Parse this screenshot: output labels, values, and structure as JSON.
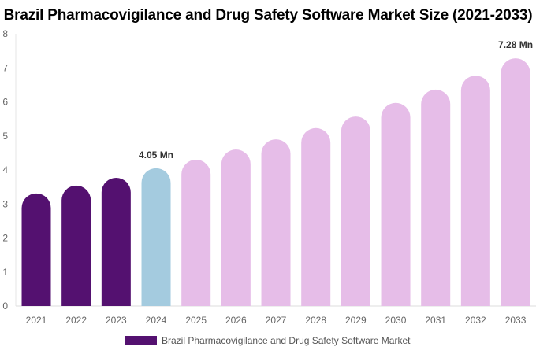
{
  "chart_data": {
    "type": "bar",
    "title": "Brazil Pharmacovigilance and Drug Safety Software Market Size (2021-2033)",
    "categories": [
      "2021",
      "2022",
      "2023",
      "2024",
      "2025",
      "2026",
      "2027",
      "2028",
      "2029",
      "2030",
      "2031",
      "2032",
      "2033"
    ],
    "series": [
      {
        "name": "Brazil Pharmacovigilance and Drug Safety Software Market",
        "values": [
          3.31,
          3.54,
          3.77,
          4.05,
          4.3,
          4.6,
          4.9,
          5.23,
          5.57,
          5.97,
          6.36,
          6.77,
          7.28
        ]
      }
    ],
    "bar_colors": [
      "#541170",
      "#541170",
      "#541170",
      "#a4cbdf",
      "#e6bde8",
      "#e6bde8",
      "#e6bde8",
      "#e6bde8",
      "#e6bde8",
      "#e6bde8",
      "#e6bde8",
      "#e6bde8",
      "#e6bde8"
    ],
    "data_labels": {
      "2024": "4.05 Mn",
      "2033": "7.28 Mn"
    },
    "ylim": [
      0,
      8
    ],
    "yticks": [
      0,
      1,
      2,
      3,
      4,
      5,
      6,
      7,
      8
    ],
    "xlabel": "",
    "ylabel": "",
    "grid": false,
    "legend": "bottom",
    "legend_color": "#541170"
  }
}
